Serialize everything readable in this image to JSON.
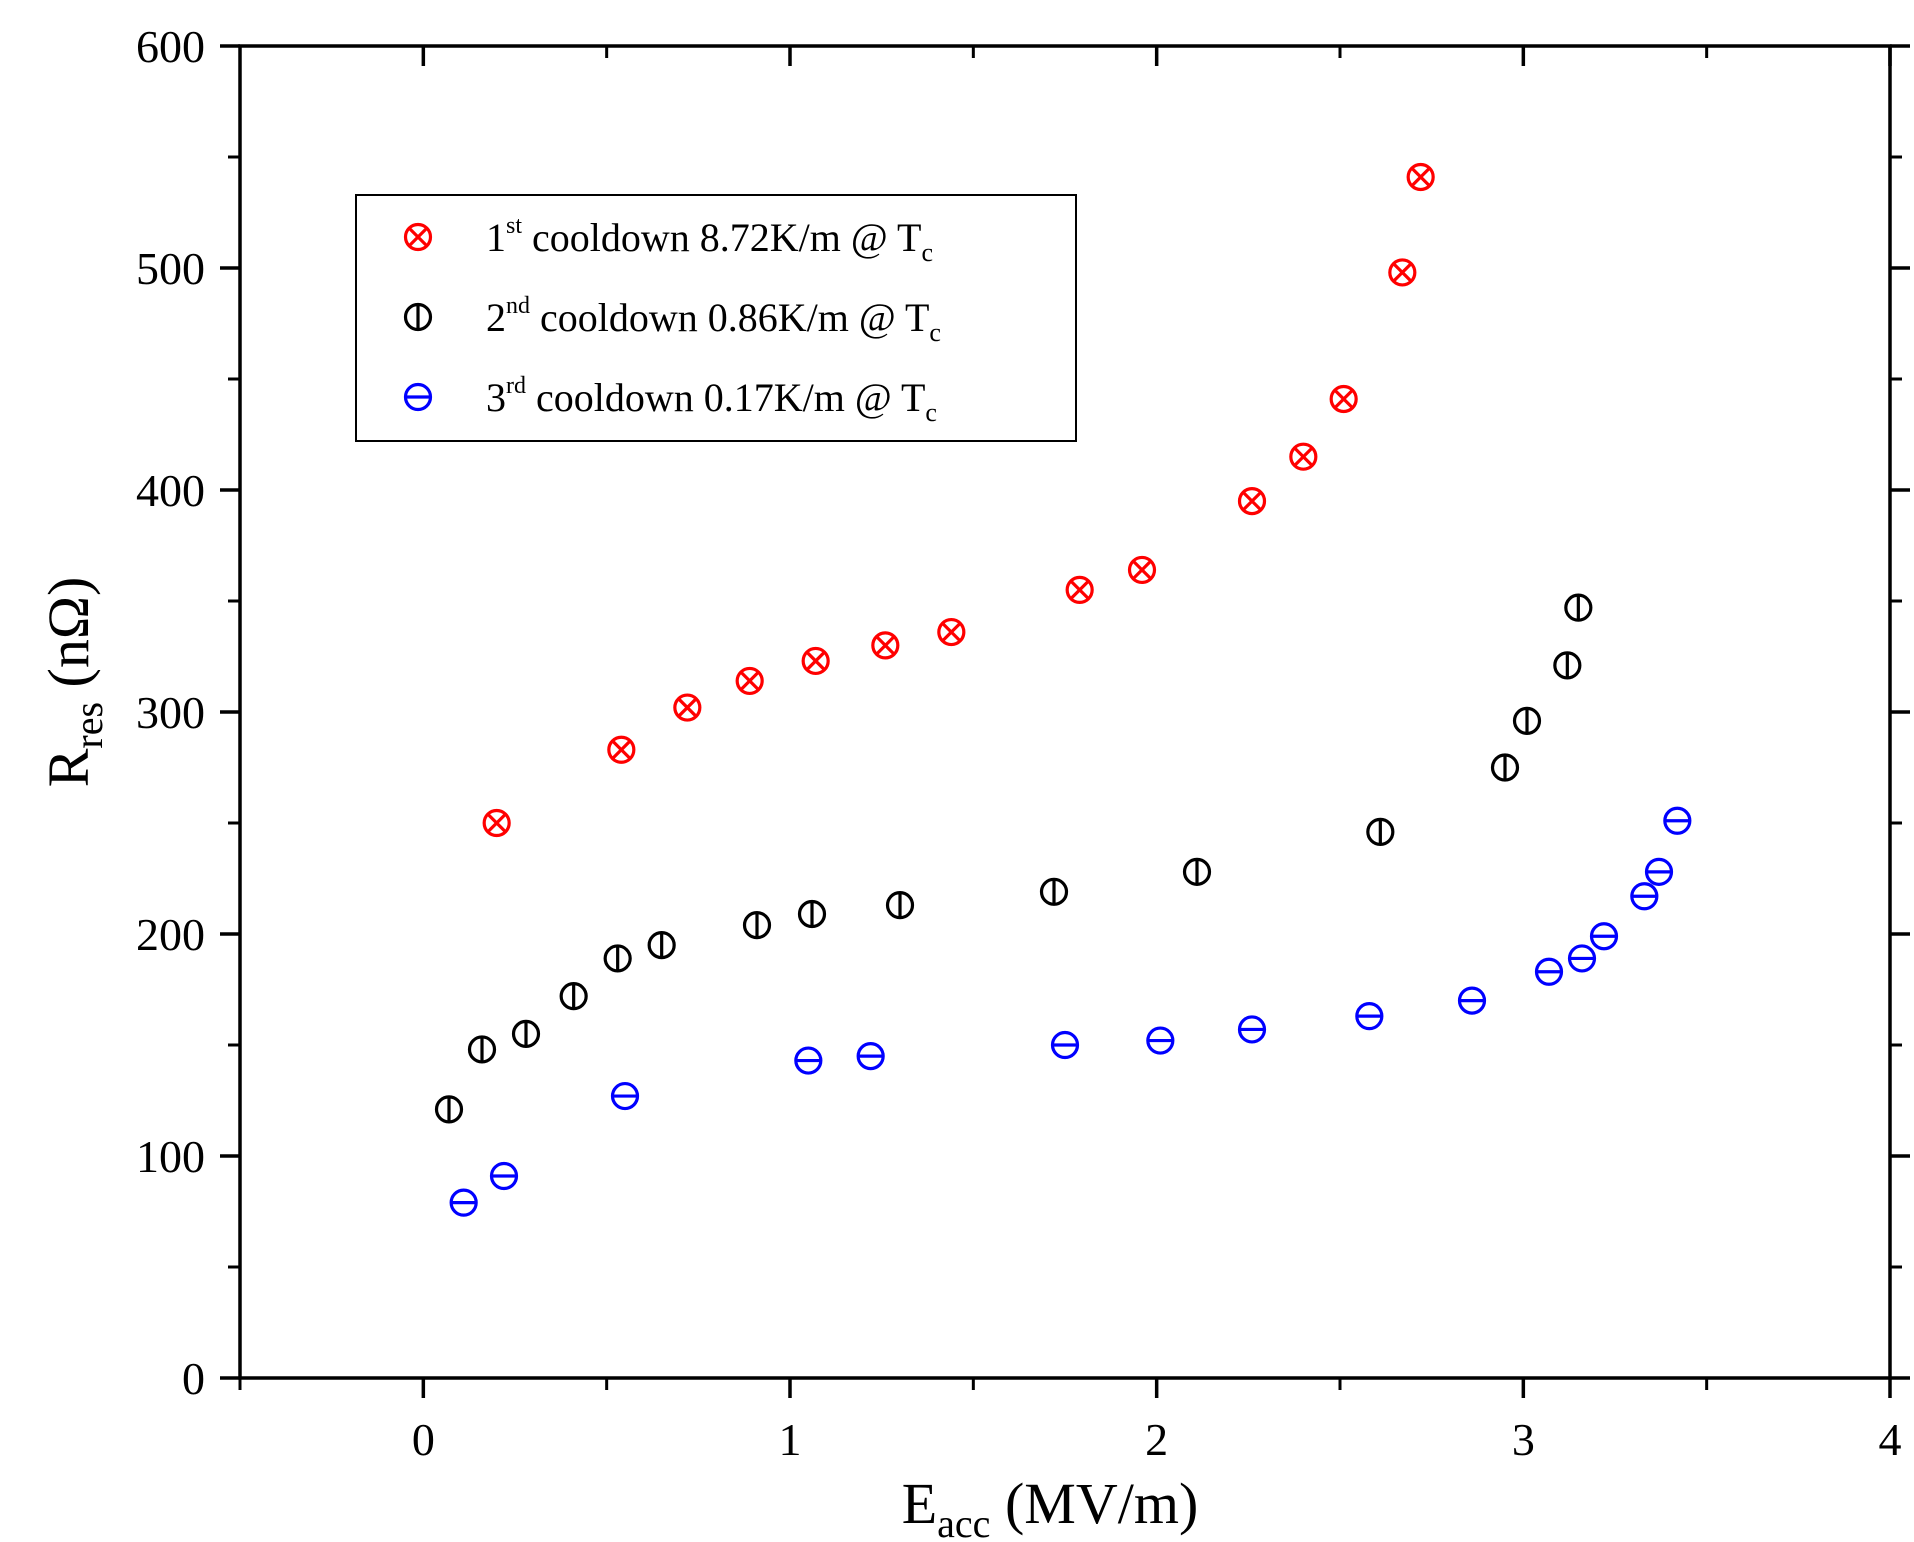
{
  "chart_data": {
    "type": "scatter",
    "title": "",
    "xlabel": {
      "main": "E",
      "sub": "acc",
      "rest": " (MV/m)"
    },
    "ylabel": {
      "main": "R",
      "sub": "res",
      "rest": " (nΩ)"
    },
    "xlim": [
      -0.5,
      4
    ],
    "ylim": [
      0,
      600
    ],
    "xticks": [
      0,
      1,
      2,
      3,
      4
    ],
    "xtick_labels": [
      "0",
      "1",
      "2",
      "3",
      "4"
    ],
    "yticks": [
      0,
      100,
      200,
      300,
      400,
      500,
      600
    ],
    "ytick_labels": [
      "0",
      "100",
      "200",
      "300",
      "400",
      "500",
      "600"
    ],
    "grid": false,
    "legend_position": "top-left",
    "series": [
      {
        "name": "1st cooldown 8.72K/m @ Tc",
        "legend": {
          "num": "1",
          "sup": "st",
          "text": " cooldown  8.72K/m @ T",
          "sub": "c"
        },
        "color": "#ff0000",
        "marker": "circle-x",
        "points": [
          [
            0.2,
            250
          ],
          [
            0.54,
            283
          ],
          [
            0.72,
            302
          ],
          [
            0.89,
            314
          ],
          [
            1.07,
            323
          ],
          [
            1.26,
            330
          ],
          [
            1.44,
            336
          ],
          [
            1.79,
            355
          ],
          [
            1.96,
            364
          ],
          [
            2.26,
            395
          ],
          [
            2.4,
            415
          ],
          [
            2.51,
            441
          ],
          [
            2.67,
            498
          ],
          [
            2.72,
            541
          ]
        ]
      },
      {
        "name": "2nd cooldown 0.86K/m @ Tc",
        "legend": {
          "num": "2",
          "sup": "nd",
          "text": " cooldown  0.86K/m @ T",
          "sub": "c"
        },
        "color": "#000000",
        "marker": "circle-vbar",
        "points": [
          [
            0.07,
            121
          ],
          [
            0.16,
            148
          ],
          [
            0.28,
            155
          ],
          [
            0.41,
            172
          ],
          [
            0.53,
            189
          ],
          [
            0.65,
            195
          ],
          [
            0.91,
            204
          ],
          [
            1.06,
            209
          ],
          [
            1.3,
            213
          ],
          [
            1.72,
            219
          ],
          [
            2.11,
            228
          ],
          [
            2.61,
            246
          ],
          [
            2.95,
            275
          ],
          [
            3.01,
            296
          ],
          [
            3.12,
            321
          ],
          [
            3.15,
            347
          ]
        ]
      },
      {
        "name": "3rd cooldown 0.17K/m @ Tc",
        "legend": {
          "num": "3",
          "sup": "rd",
          "text": " cooldown  0.17K/m @ T",
          "sub": "c"
        },
        "color": "#0000ff",
        "marker": "circle-hbar",
        "points": [
          [
            0.11,
            79
          ],
          [
            0.22,
            91
          ],
          [
            0.55,
            127
          ],
          [
            1.05,
            143
          ],
          [
            1.22,
            145
          ],
          [
            1.75,
            150
          ],
          [
            2.01,
            152
          ],
          [
            2.26,
            157
          ],
          [
            2.58,
            163
          ],
          [
            2.86,
            170
          ],
          [
            3.07,
            183
          ],
          [
            3.16,
            189
          ],
          [
            3.22,
            199
          ],
          [
            3.33,
            217
          ],
          [
            3.37,
            228
          ],
          [
            3.42,
            251
          ]
        ]
      }
    ]
  }
}
